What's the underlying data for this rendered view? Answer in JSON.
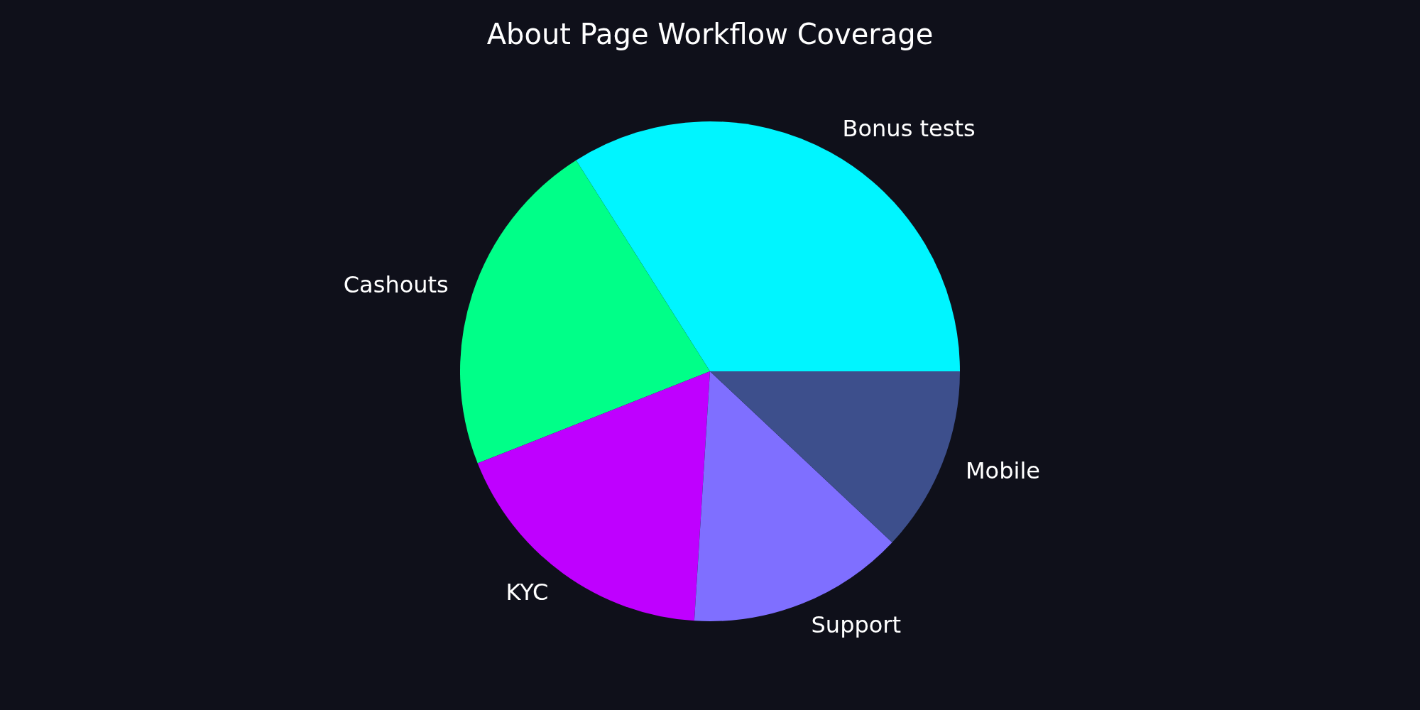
{
  "chart_data": {
    "type": "pie",
    "title": "About Page Workflow Coverage",
    "categories": [
      "Bonus tests",
      "Cashouts",
      "KYC",
      "Support",
      "Mobile"
    ],
    "values": [
      34,
      22,
      18,
      14,
      12
    ],
    "colors": [
      "#00f5ff",
      "#00ff88",
      "#bf00ff",
      "#7f6fff",
      "#3d4f8c"
    ]
  }
}
